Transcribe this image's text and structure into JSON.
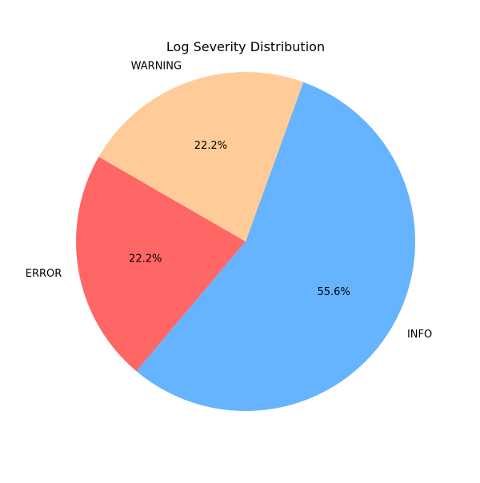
{
  "chart_data": {
    "type": "pie",
    "title": "Log Severity Distribution",
    "start_angle_deg": 150,
    "direction": "counterclockwise",
    "slices": [
      {
        "label": "ERROR",
        "value": 22.2,
        "pct_label": "22.2%",
        "color": "#ff6666"
      },
      {
        "label": "INFO",
        "value": 55.6,
        "pct_label": "55.6%",
        "color": "#66b3ff"
      },
      {
        "label": "WARNING",
        "value": 22.2,
        "pct_label": "22.2%",
        "color": "#ffcc99"
      }
    ]
  }
}
